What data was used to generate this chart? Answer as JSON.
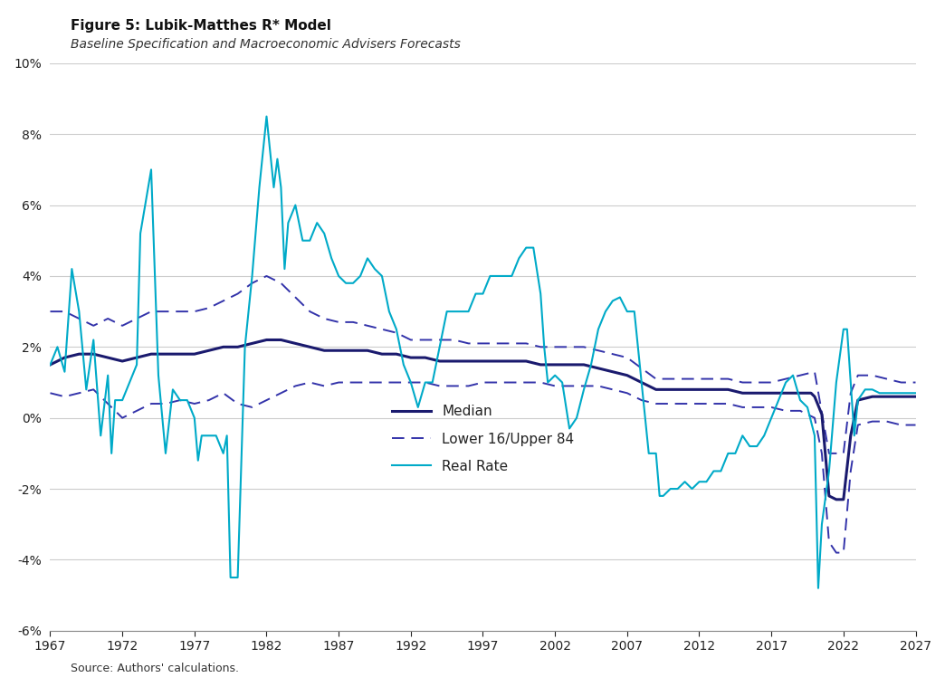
{
  "title": "Figure 5: Lubik-Matthes R* Model",
  "subtitle": "Baseline Specification and Macroeconomic Advisers Forecasts",
  "source": "Source: Authors' calculations.",
  "ylim": [
    -0.06,
    0.1
  ],
  "yticks": [
    -0.06,
    -0.04,
    -0.02,
    0.0,
    0.02,
    0.04,
    0.06,
    0.08,
    0.1
  ],
  "xticks": [
    1967,
    1972,
    1977,
    1982,
    1987,
    1992,
    1997,
    2002,
    2007,
    2012,
    2017,
    2022,
    2027
  ],
  "median_color": "#1a1a6e",
  "band_color": "#3333aa",
  "real_rate_color": "#00aac8",
  "legend_fontsize": 11,
  "title_fontsize": 11,
  "subtitle_fontsize": 10,
  "axis_fontsize": 10,
  "tick_fontsize": 10,
  "background_color": "#ffffff",
  "grid_color": "#cccccc"
}
